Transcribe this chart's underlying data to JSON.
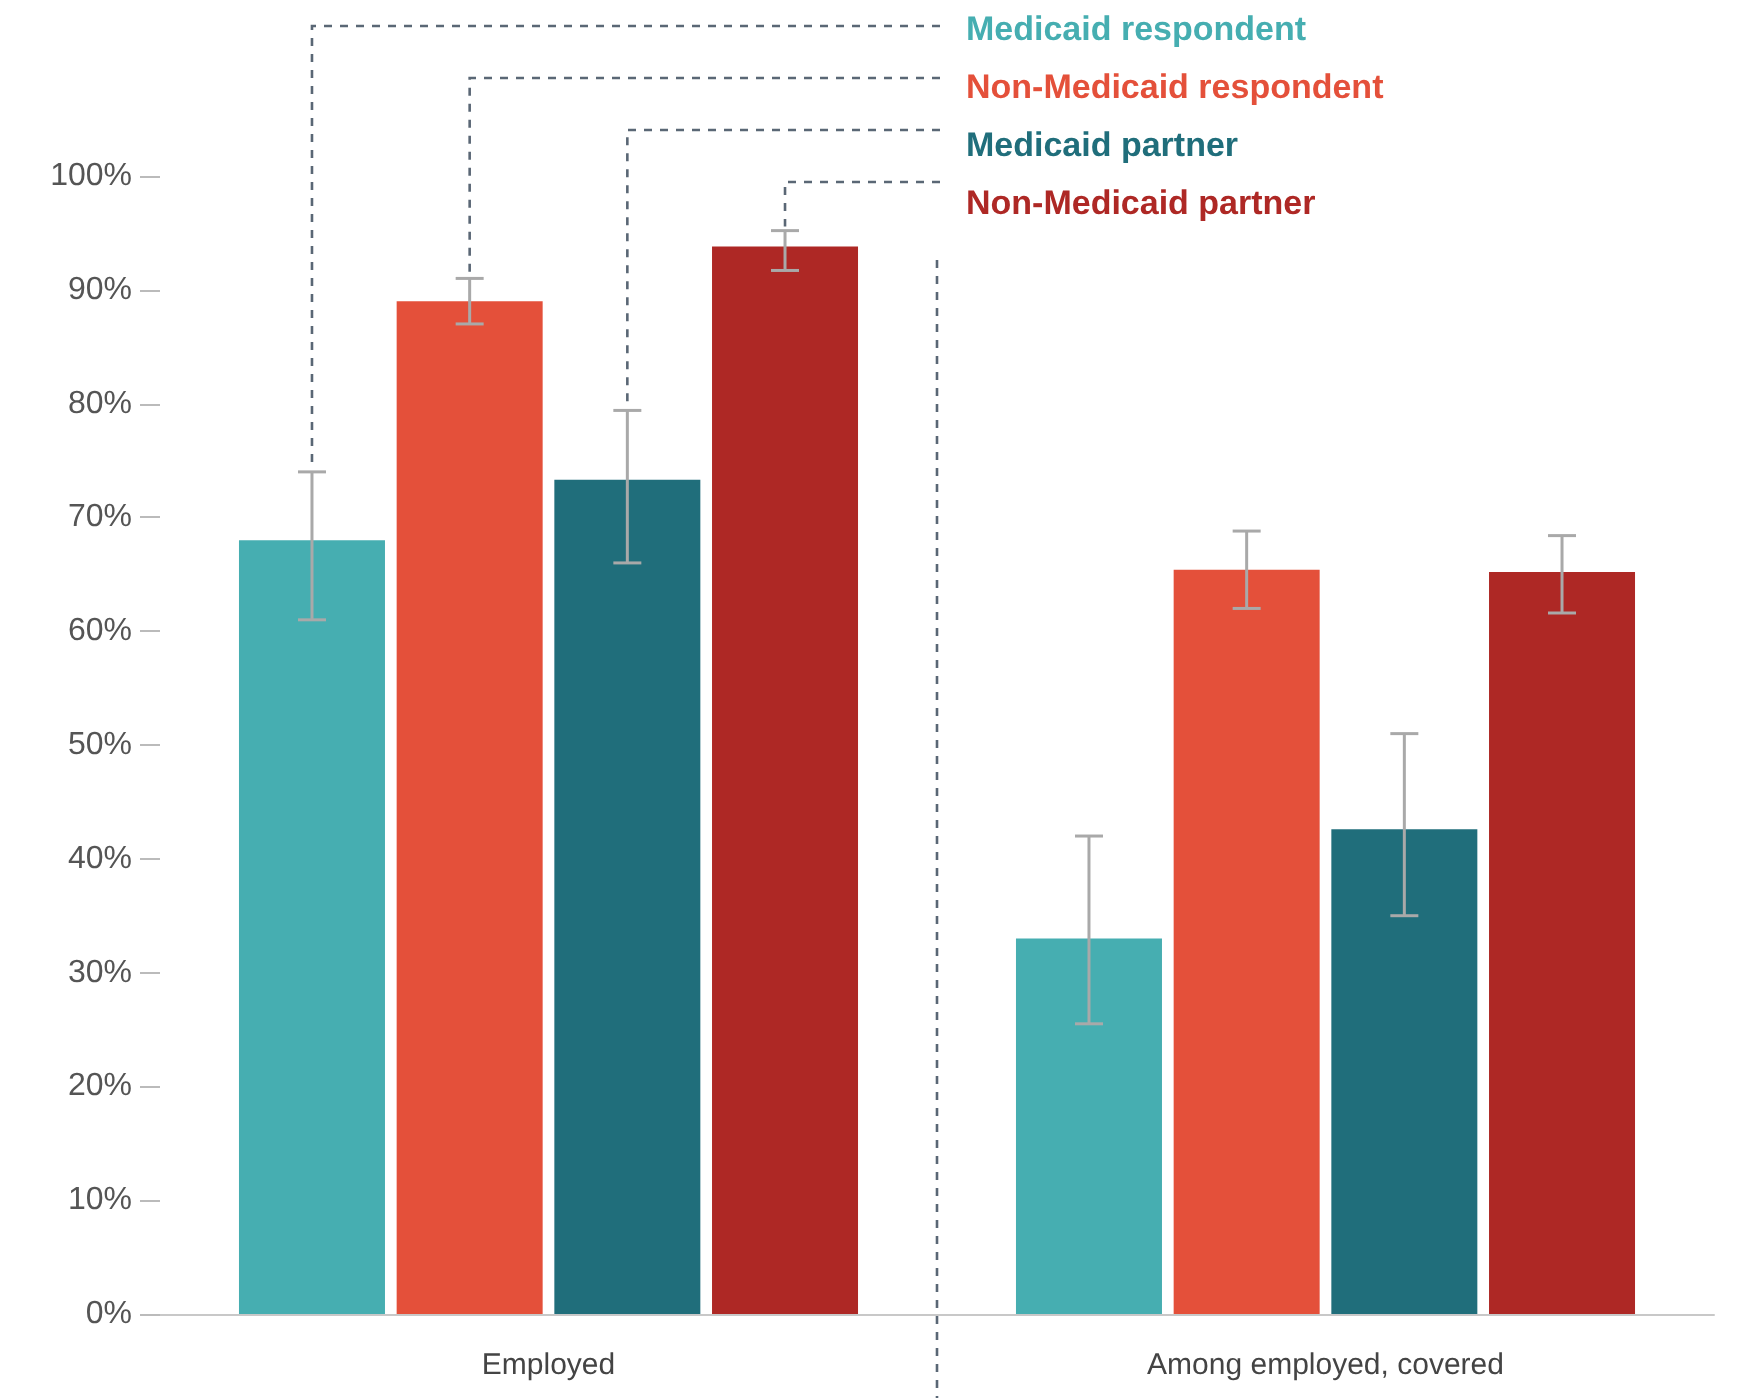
{
  "chart_data": {
    "type": "bar",
    "categories": [
      "Employed",
      "Among employed, covered"
    ],
    "series": [
      {
        "name": "Medicaid respondent",
        "color": "#46aeb1",
        "values": [
          68,
          33
        ],
        "errors": [
          [
            61,
            74
          ],
          [
            25.5,
            42
          ]
        ]
      },
      {
        "name": "Non-Medicaid respondent",
        "color": "#e4503a",
        "values": [
          89,
          65.4
        ],
        "errors": [
          [
            87,
            91
          ],
          [
            62,
            68.8
          ]
        ]
      },
      {
        "name": "Medicaid partner",
        "color": "#206e7b",
        "values": [
          73.3,
          42.6
        ],
        "errors": [
          [
            66,
            79.4
          ],
          [
            35,
            51
          ]
        ]
      },
      {
        "name": "Non-Medicaid partner",
        "color": "#ae2825",
        "values": [
          93.8,
          65.2
        ],
        "errors": [
          [
            91.7,
            95.2
          ],
          [
            61.6,
            68.4
          ]
        ]
      }
    ],
    "ylim": [
      0,
      100
    ],
    "yticks": [
      {
        "value": 0,
        "label": "0%"
      },
      {
        "value": 10,
        "label": "10%"
      },
      {
        "value": 20,
        "label": "20%"
      },
      {
        "value": 30,
        "label": "30%"
      },
      {
        "value": 40,
        "label": "40%"
      },
      {
        "value": 50,
        "label": "50%"
      },
      {
        "value": 60,
        "label": "60%"
      },
      {
        "value": 70,
        "label": "70%"
      },
      {
        "value": 80,
        "label": "80%"
      },
      {
        "value": 90,
        "label": "90%"
      },
      {
        "value": 100,
        "label": "100%"
      }
    ],
    "grid": false,
    "legend": "top right"
  }
}
